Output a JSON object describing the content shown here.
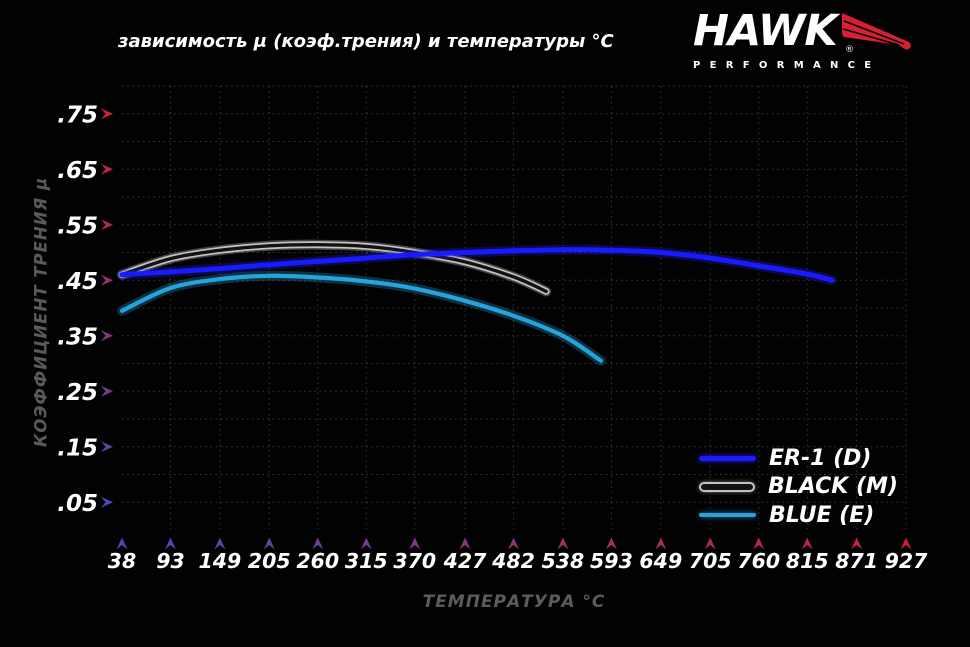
{
  "header": {
    "title": "зависимость μ (коэф.трения) и температуры °C"
  },
  "logo": {
    "brand": "HAWK",
    "registered": "®",
    "subtitle": "PERFORMANCE",
    "wing_color": "#d81f33",
    "text_color": "#ffffff"
  },
  "axes": {
    "x_title": "ТЕМПЕРАТУРА °C",
    "y_title": "КОЭФФИЦИЕНТ ТРЕНИЯ μ",
    "gradient_top": "#cf1f38",
    "gradient_bottom": "#4a4ab2",
    "gradient_left": "#4a4ab2",
    "gradient_right": "#cf1f38",
    "grid_color": "#6a6a6a",
    "tick_label_color": "#ffffff",
    "axis_title_color": "#5c5c5c"
  },
  "chart_data": {
    "type": "line",
    "title": "зависимость μ (коэф.трения) и температуры °C",
    "xlabel": "ТЕМПЕРАТУРА °C",
    "ylabel": "КОЭФФИЦИЕНТ ТРЕНИЯ μ",
    "x_ticks": [
      38,
      93,
      149,
      205,
      260,
      315,
      370,
      427,
      482,
      538,
      593,
      649,
      705,
      760,
      815,
      871,
      927
    ],
    "y_ticks": [
      0.75,
      0.65,
      0.55,
      0.45,
      0.35,
      0.25,
      0.15,
      0.05
    ],
    "y_tick_labels": [
      ".75",
      ".65",
      ".55",
      ".45",
      ".35",
      ".25",
      ".15",
      ".05"
    ],
    "xlim": [
      38,
      927
    ],
    "ylim": [
      0,
      0.8
    ],
    "grid": "dotted; horizontal every 0.05, vertical at each temperature tick",
    "legend_position": "lower right",
    "series": [
      {
        "name": "ER-1 (D)",
        "color": "#1a1aff",
        "glow": "#2020ff",
        "x": [
          38,
          93,
          149,
          205,
          260,
          315,
          370,
          427,
          482,
          538,
          593,
          649,
          705,
          760,
          815,
          843
        ],
        "y": [
          0.46,
          0.465,
          0.471,
          0.478,
          0.484,
          0.49,
          0.496,
          0.5,
          0.503,
          0.505,
          0.504,
          0.5,
          0.49,
          0.476,
          0.461,
          0.45
        ]
      },
      {
        "name": "BLACK (M)",
        "color": "#121212",
        "outline": "#c2c2c2",
        "glow": "#e8e8e8",
        "x": [
          38,
          93,
          149,
          205,
          260,
          315,
          370,
          427,
          482,
          519
        ],
        "y": [
          0.46,
          0.489,
          0.504,
          0.512,
          0.514,
          0.511,
          0.5,
          0.483,
          0.456,
          0.43
        ]
      },
      {
        "name": "BLUE (E)",
        "color": "#27a3db",
        "glow": "#2aa5dd",
        "x": [
          38,
          93,
          149,
          205,
          260,
          315,
          370,
          427,
          482,
          538,
          581
        ],
        "y": [
          0.395,
          0.436,
          0.452,
          0.458,
          0.455,
          0.448,
          0.435,
          0.413,
          0.386,
          0.35,
          0.305
        ]
      }
    ]
  }
}
